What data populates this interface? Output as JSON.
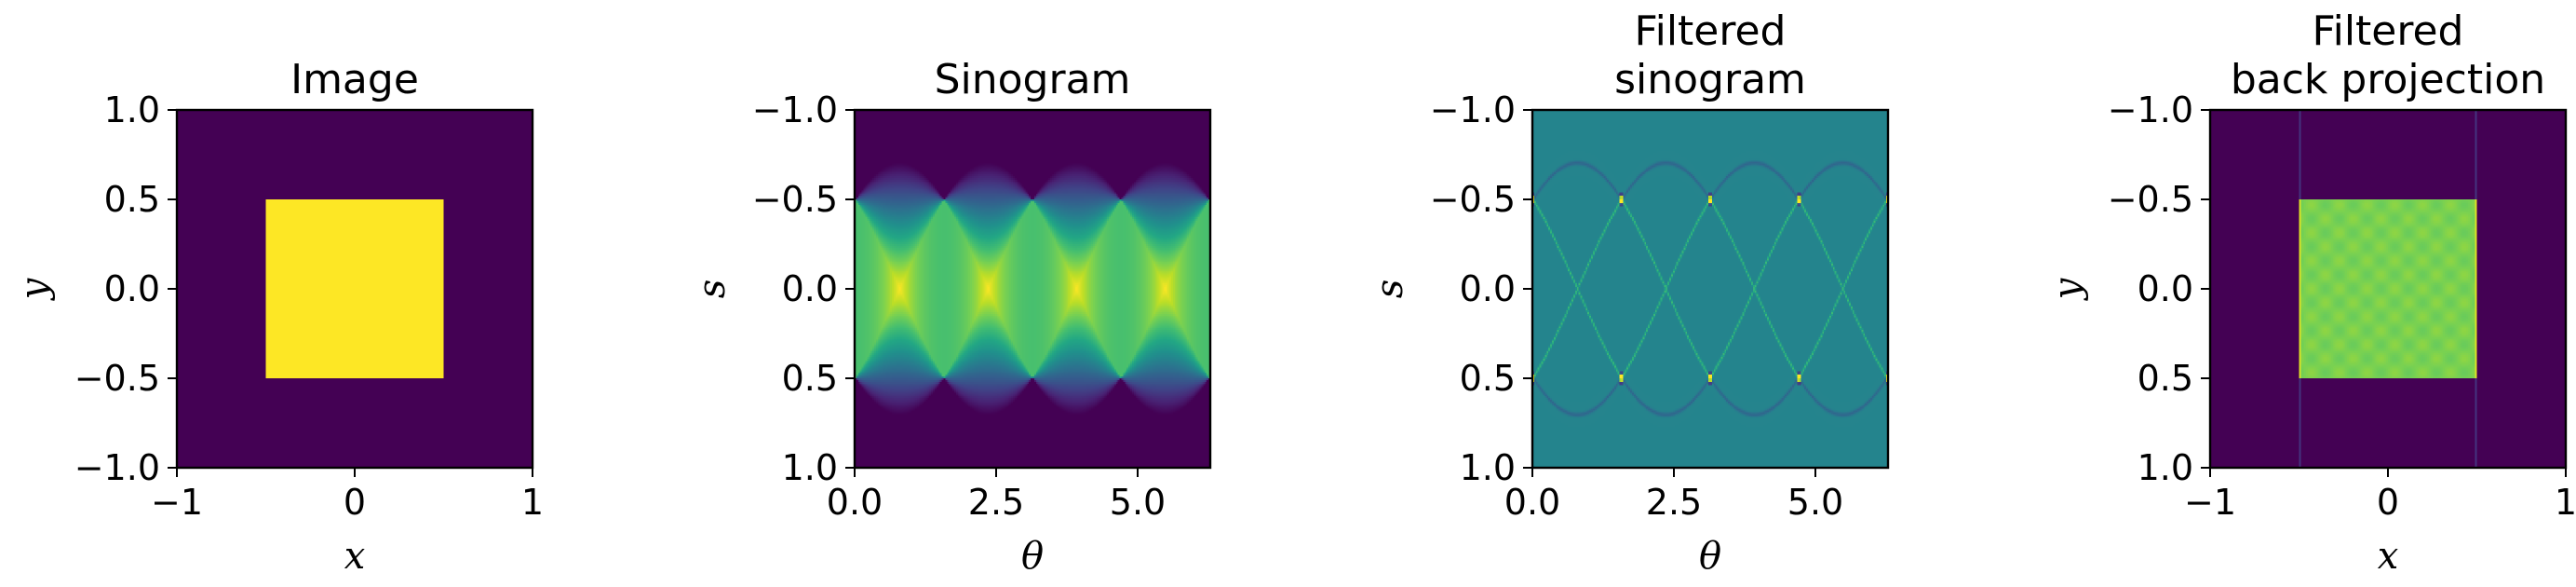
{
  "chart_data": [
    {
      "type": "heatmap",
      "title": [
        "Image"
      ],
      "xlabel": "x",
      "ylabel": "y",
      "xlim": [
        -1,
        1
      ],
      "ylim": [
        -1,
        1
      ],
      "y_inverted": false,
      "x_ticks": [
        -1,
        0,
        1
      ],
      "x_tick_labels": [
        "−1",
        "0",
        "1"
      ],
      "y_ticks": [
        1.0,
        0.5,
        0.0,
        -0.5,
        -1.0
      ],
      "y_tick_labels": [
        "1.0",
        "0.5",
        "0.0",
        "−0.5",
        "−1.0"
      ],
      "content": "unit square of value 1 on [-0.5,0.5]x[-0.5,0.5], zero elsewhere",
      "square": [
        -0.5,
        0.5,
        -0.5,
        0.5
      ],
      "colormap": "viridis"
    },
    {
      "type": "heatmap",
      "title": [
        "Sinogram"
      ],
      "xlabel": "θ",
      "ylabel": "s",
      "xlim": [
        0,
        6.283
      ],
      "ylim": [
        -1,
        1
      ],
      "y_inverted": true,
      "x_ticks": [
        0.0,
        2.5,
        5.0
      ],
      "x_tick_labels": [
        "0.0",
        "2.5",
        "5.0"
      ],
      "y_ticks": [
        -1.0,
        -0.5,
        0.0,
        0.5,
        1.0
      ],
      "y_tick_labels": [
        "−1.0",
        "−0.5",
        "0.0",
        "0.5",
        "1.0"
      ],
      "content": "Radon transform of the square",
      "colormap": "viridis"
    },
    {
      "type": "heatmap",
      "title": [
        "Filtered",
        "sinogram"
      ],
      "xlabel": "θ",
      "ylabel": "s",
      "xlim": [
        0,
        6.283
      ],
      "ylim": [
        -1,
        1
      ],
      "y_inverted": true,
      "x_ticks": [
        0.0,
        2.5,
        5.0
      ],
      "x_tick_labels": [
        "0.0",
        "2.5",
        "5.0"
      ],
      "y_ticks": [
        -1.0,
        -0.5,
        0.0,
        0.5,
        1.0
      ],
      "y_tick_labels": [
        "−1.0",
        "−0.5",
        "0.0",
        "0.5",
        "1.0"
      ],
      "content": "ramp-filtered sinogram",
      "colormap": "viridis"
    },
    {
      "type": "heatmap",
      "title": [
        "Filtered",
        "back projection"
      ],
      "xlabel": "x",
      "ylabel": "y",
      "xlim": [
        -1,
        1
      ],
      "ylim": [
        -1,
        1
      ],
      "y_inverted": true,
      "x_ticks": [
        -1,
        0,
        1
      ],
      "x_tick_labels": [
        "−1",
        "0",
        "1"
      ],
      "y_ticks": [
        -1.0,
        -0.5,
        0.0,
        0.5,
        1.0
      ],
      "y_tick_labels": [
        "−1.0",
        "−0.5",
        "0.0",
        "0.5",
        "1.0"
      ],
      "content": "reconstruction of the square",
      "square": [
        -0.5,
        0.5,
        -0.5,
        0.5
      ],
      "colormap": "viridis"
    }
  ]
}
